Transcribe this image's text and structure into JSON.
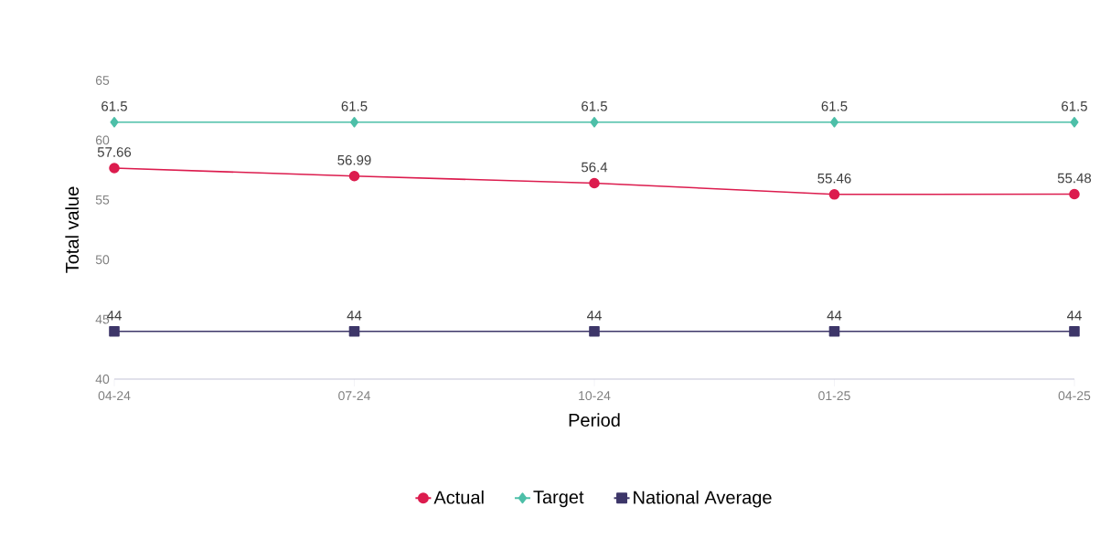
{
  "chart_data": {
    "type": "line",
    "xlabel": "Period",
    "ylabel": "Total value",
    "categories": [
      "04-24",
      "07-24",
      "10-24",
      "01-25",
      "04-25"
    ],
    "series": [
      {
        "name": "Actual",
        "color": "#dc1c4e",
        "marker": "circle",
        "values": [
          57.66,
          56.99,
          56.4,
          55.46,
          55.48
        ]
      },
      {
        "name": "Target",
        "color": "#4dbfa8",
        "marker": "diamond",
        "values": [
          61.5,
          61.5,
          61.5,
          61.5,
          61.5
        ]
      },
      {
        "name": "National Average",
        "color": "#3d3669",
        "marker": "square",
        "values": [
          44,
          44,
          44,
          44,
          44
        ]
      }
    ],
    "ylim": [
      40,
      65
    ],
    "yticks": [
      40,
      45,
      50,
      55,
      60,
      65
    ],
    "grid": false,
    "legend": "bottom",
    "data_labels": true,
    "line_style": "solid"
  }
}
